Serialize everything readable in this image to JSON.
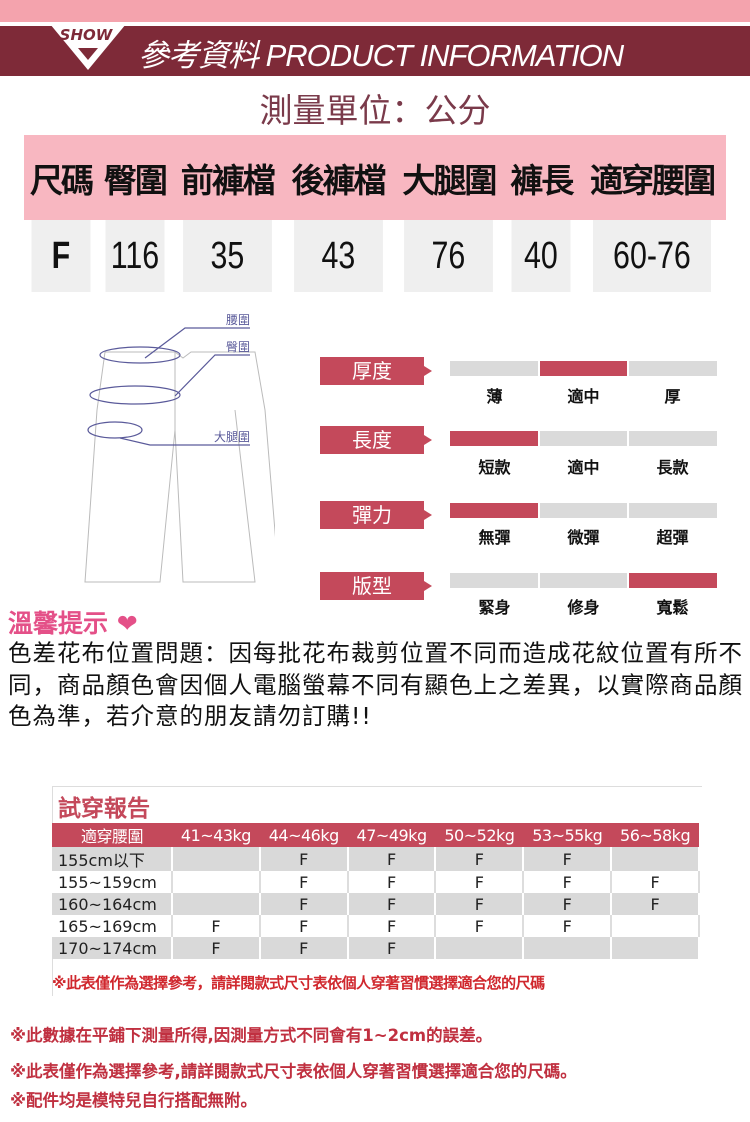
{
  "header": {
    "badge": "SHOW",
    "title": "參考資料 PRODUCT INFORMATION"
  },
  "unit": "測量單位：公分",
  "size_table": {
    "headers": [
      "尺碼",
      "臀圍",
      "前褲檔",
      "後褲檔",
      "大腿圍",
      "褲長",
      "適穿腰圍"
    ],
    "row": [
      "F",
      "116",
      "35",
      "43",
      "76",
      "40",
      "60-76"
    ]
  },
  "diagram": {
    "labels": [
      "腰圍",
      "臀圍",
      "大腿圍"
    ]
  },
  "attributes": [
    {
      "label": "厚度",
      "options": [
        "薄",
        "適中",
        "厚"
      ],
      "selected": 1
    },
    {
      "label": "長度",
      "options": [
        "短款",
        "適中",
        "長款"
      ],
      "selected": 0
    },
    {
      "label": "彈力",
      "options": [
        "無彈",
        "微彈",
        "超彈"
      ],
      "selected": 0
    },
    {
      "label": "版型",
      "options": [
        "緊身",
        "修身",
        "寬鬆"
      ],
      "selected": 2
    }
  ],
  "tips": {
    "title": "溫馨提示",
    "body": "色差花布位置問題：因每批花布裁剪位置不同而造成花紋位置有所不同，商品顏色會因個人電腦螢幕不同有顯色上之差異，以實際商品顏色為準，若介意的朋友請勿訂購!!"
  },
  "fit_report": {
    "title": "試穿報告",
    "headers": [
      "適穿腰圍",
      "41~43kg",
      "44~46kg",
      "47~49kg",
      "50~52kg",
      "53~55kg",
      "56~58kg"
    ],
    "rows": [
      {
        "height": "155cm以下",
        "cells": [
          "",
          "F",
          "F",
          "F",
          "F",
          ""
        ]
      },
      {
        "height": "155~159cm",
        "cells": [
          "",
          "F",
          "F",
          "F",
          "F",
          "F"
        ]
      },
      {
        "height": "160~164cm",
        "cells": [
          "",
          "F",
          "F",
          "F",
          "F",
          "F"
        ]
      },
      {
        "height": "165~169cm",
        "cells": [
          "F",
          "F",
          "F",
          "F",
          "F",
          ""
        ]
      },
      {
        "height": "170~174cm",
        "cells": [
          "F",
          "F",
          "F",
          "",
          "",
          ""
        ]
      }
    ],
    "cell_colors": [
      [
        "",
        "o",
        "o",
        "g",
        "g",
        ""
      ],
      [
        "",
        "o",
        "o",
        "g",
        "g",
        "g"
      ],
      [
        "",
        "o",
        "g",
        "g",
        "g",
        "g"
      ],
      [
        "o",
        "o",
        "g",
        "g",
        "g",
        ""
      ],
      [
        "o",
        "o",
        "g",
        "",
        "",
        ""
      ]
    ],
    "note": "※此表僅作為選擇參考，請詳閱款式尺寸表依個人穿著習慣選擇適合您的尺碼"
  },
  "footnotes": [
    "※此數據在平鋪下測量所得,因測量方式不同會有1~2cm的誤差。",
    "※此表僅作為選擇參考,請詳閱款式尺寸表依個人穿著習慣選擇適合您的尺碼。",
    "※配件均是模特兒自行搭配無附。"
  ],
  "colors": {
    "accent": "#c4495b",
    "dark_band": "#7e2a38",
    "pink": "#f8b7c1",
    "orange": "#e0832a",
    "green": "#3f7a2a"
  }
}
